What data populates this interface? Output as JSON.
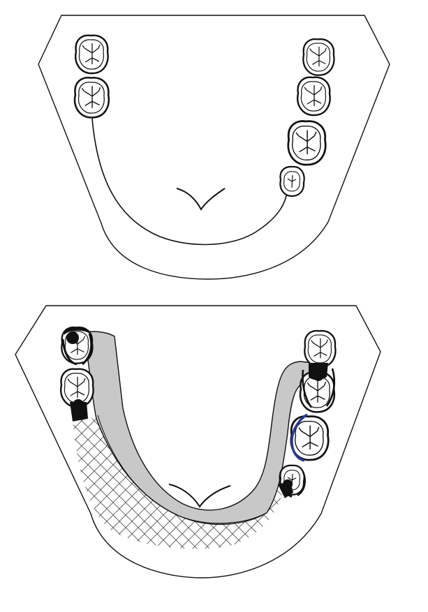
{
  "diagram": {
    "panels": [
      {
        "id": "top",
        "teeth_left": [
          "molar",
          "molar"
        ],
        "teeth_right": [
          "molar",
          "molar",
          "molar",
          "premolar"
        ]
      },
      {
        "id": "bottom",
        "teeth_left": [
          "molar-clasp",
          "molar-rest"
        ],
        "teeth_right": [
          "molar",
          "molar-clasp",
          "molar-wire",
          "premolar-rest"
        ],
        "features": [
          "lingual-bar-connector",
          "denture-base-mesh",
          "clasp-rests",
          "wire-clasp"
        ]
      }
    ],
    "colors": {
      "line": "#111111",
      "connector_fill": "#c8c8c8",
      "mesh": "#555555",
      "wire": "#2a3a8c",
      "background": "#ffffff"
    }
  }
}
